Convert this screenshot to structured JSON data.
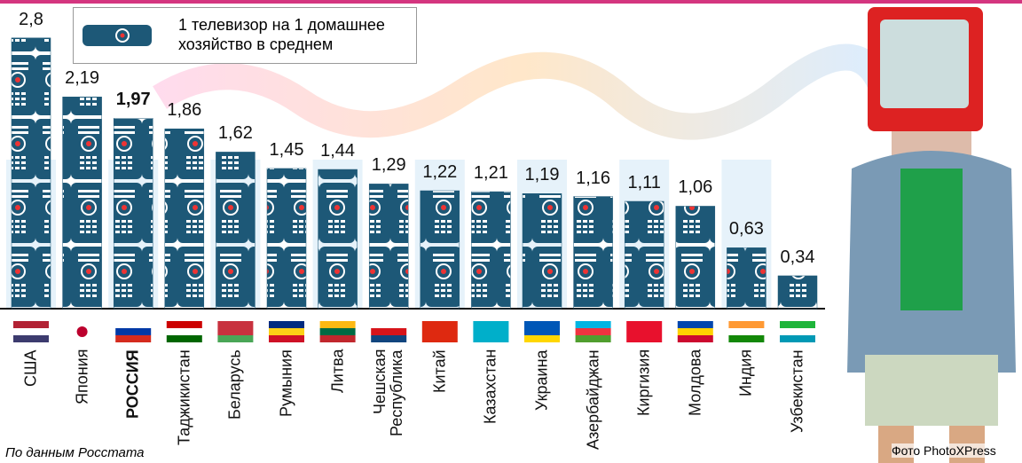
{
  "chart_data": {
    "type": "bar",
    "legend": "1 телевизор на 1 домашнее хозяйство в среднем",
    "categories": [
      "США",
      "Япония",
      "РОССИЯ",
      "Таджикистан",
      "Беларусь",
      "Румыния",
      "Литва",
      "Чешская\nРеспублика",
      "Китай",
      "Казахстан",
      "Украина",
      "Азербайджан",
      "Киргизия",
      "Молдова",
      "Индия",
      "Узбекистан"
    ],
    "values": [
      2.8,
      2.19,
      1.97,
      1.86,
      1.62,
      1.45,
      1.44,
      1.29,
      1.22,
      1.21,
      1.19,
      1.16,
      1.11,
      1.06,
      0.63,
      0.34
    ],
    "value_labels": [
      "2,8",
      "2,19",
      "1,97",
      "1,86",
      "1,62",
      "1,45",
      "1,44",
      "1,29",
      "1,22",
      "1,21",
      "1,19",
      "1,16",
      "1,11",
      "1,06",
      "0,63",
      "0,34"
    ],
    "highlight": 2,
    "color": "#1d5877",
    "source": "По данным Росстата",
    "photo_credit": "Фото PhotoXPress"
  }
}
